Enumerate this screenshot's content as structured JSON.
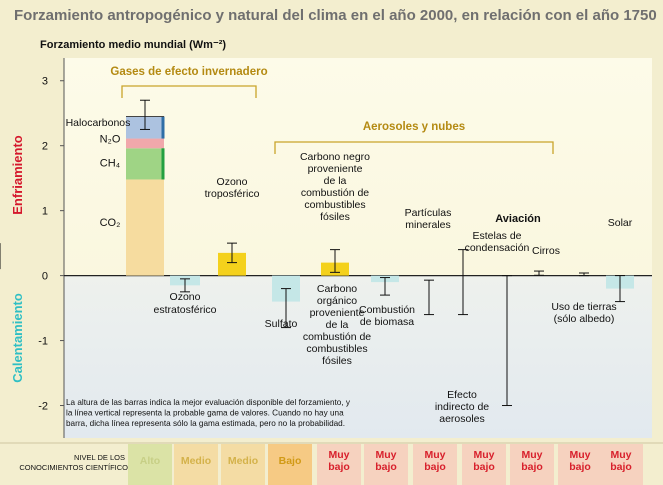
{
  "title": "Forzamiento antropogénico y natural del clima en el año 2000, en relación con el año 1750",
  "chart_data": {
    "type": "bar",
    "ylabel": "Forzamiento medio mundial (Wm⁻²)",
    "ylim": [
      -2.5,
      3.35
    ],
    "yticks": [
      -2,
      -1,
      0,
      1,
      2,
      3
    ],
    "side_labels": {
      "top": "Enfriamiento",
      "bottom": "Calentamiento"
    },
    "colors": {
      "background": "#f3eecf",
      "plot_top": "#fdfbe9",
      "plot_bottom": "#e2e9ef",
      "co2": "#f6dc9f",
      "ch4": "#9fd485",
      "n2o": "#f1a8ab",
      "halo": "#acc2e0",
      "halo_edge": "#2f6ea6",
      "ch4_edge": "#24a040",
      "yellow": "#f4d11c",
      "teal": "#c5e7e7",
      "bracket": "#c9a42a",
      "cooling": "#d5172c",
      "warming": "#2fbfc4",
      "level_high": "#dbe3a6",
      "level_medium": "#f4dca4",
      "level_low": "#f6ca84",
      "level_vlow": "#f6d2bf"
    },
    "groups": [
      {
        "label": "Gases de efecto invernadero",
        "from": 0,
        "to": 2
      },
      {
        "label": "Aerosoles y nubes",
        "from": 3,
        "to": 8
      }
    ],
    "stacked_bar": {
      "segments": [
        {
          "name": "CO₂",
          "value": 1.48,
          "color": "co2"
        },
        {
          "name": "CH₄",
          "value": 0.48,
          "color": "ch4"
        },
        {
          "name": "N₂O",
          "value": 0.15,
          "color": "n2o"
        },
        {
          "name": "Halocarbonos",
          "value": 0.34,
          "color": "halo"
        }
      ],
      "range": [
        2.25,
        2.7
      ]
    },
    "bars": [
      {
        "label": "Ozono estratosférico",
        "value": -0.15,
        "range": [
          -0.05,
          -0.25
        ],
        "style": "teal"
      },
      {
        "label": "Ozono troposférico",
        "value": 0.35,
        "range": [
          0.2,
          0.5
        ],
        "style": "yellow"
      },
      {
        "label": "Sulfato",
        "value": -0.4,
        "range": [
          -0.2,
          -0.8
        ],
        "style": "teal"
      },
      {
        "label": "Carbono negro proveniente de la combustión de combustibles fósiles",
        "value": 0.2,
        "range": [
          0.05,
          0.4
        ],
        "style": "yellow"
      },
      {
        "label": "Carbono orgánico proveniente de la combustión de combustibles fósiles",
        "value": -0.1,
        "range": [
          -0.03,
          -0.3
        ],
        "style": "teal"
      },
      {
        "label": "Combustión de biomasa",
        "value": -0.2,
        "range": [
          -0.07,
          -0.6
        ],
        "style": "teal"
      },
      {
        "label": "Partículas minerales",
        "value": null,
        "range": [
          0.4,
          -0.6
        ],
        "style": "none"
      },
      {
        "label": "Efecto indirecto de aerosoles",
        "value": null,
        "range": [
          0,
          -2
        ],
        "style": "none"
      },
      {
        "label": "Estelas de condensación",
        "value": 0.02,
        "range": [
          0.005,
          0.07
        ],
        "style": "yellow"
      },
      {
        "label": "Cirros",
        "value": null,
        "range": [
          0,
          0.04
        ],
        "style": "none"
      },
      {
        "label": "Uso de tierras (sólo albedo)",
        "value": -0.2,
        "range": [
          0,
          -0.4
        ],
        "style": "teal"
      },
      {
        "label": "Solar",
        "value": 0.2,
        "range": [
          0.1,
          0.5
        ],
        "style": "yellow"
      }
    ],
    "aviation_label": "Aviación",
    "note": "La altura de las barras indica la mejor evaluación disponible del forzamiento, y la línea vertical representa la probable gama de valores. Cuando no hay una barra, dicha línea representa sólo la gama estimada, pero no la probabilidad.",
    "confidence": {
      "title": "NIVEL DE LOS CONOCIMIENTOS CIENTÍFICOS",
      "levels": [
        "Alto",
        "Medio",
        "Medio",
        "Bajo",
        "Muy bajo",
        "Muy bajo",
        "Muy bajo",
        "Muy bajo",
        "Muy bajo",
        "Muy bajo",
        "Muy bajo"
      ]
    }
  }
}
